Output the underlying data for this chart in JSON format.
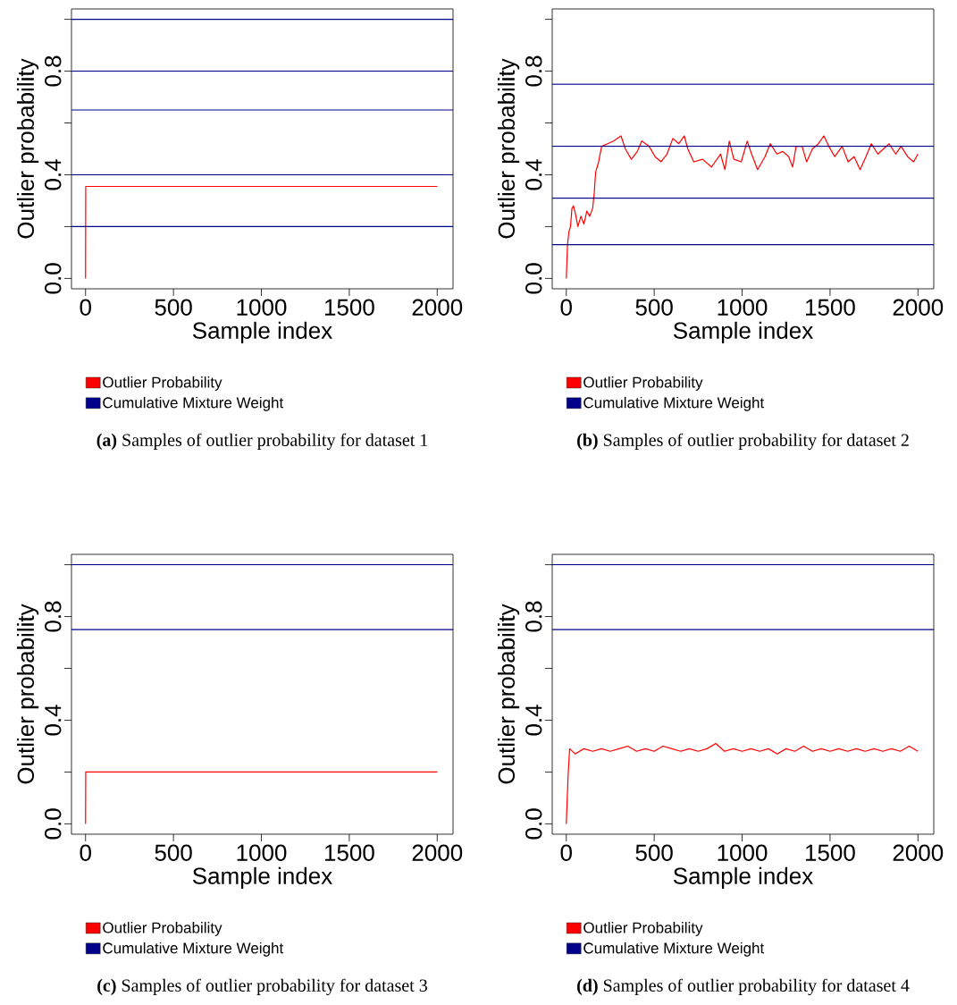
{
  "chart_data": [
    {
      "type": "line",
      "title": "**(a)** Samples of outlier probability for dataset 1",
      "xlabel": "Sample index",
      "ylabel": "Outlier probability",
      "xlim": [
        -80,
        2090
      ],
      "ylim": [
        -0.04,
        1.04
      ],
      "xticks": [
        0,
        500,
        1000,
        1500,
        2000
      ],
      "yticks": [
        {
          "value": 0,
          "label": "0.0"
        },
        {
          "value": 0.2,
          "label": null
        },
        {
          "value": 0.4,
          "label": "0.4"
        },
        {
          "value": 0.6,
          "label": null
        },
        {
          "value": 0.8,
          "label": "0.8"
        },
        {
          "value": 1.0,
          "label": null
        }
      ],
      "legend": "bottom",
      "marker": "none",
      "line_style": "solid",
      "series": [
        {
          "name": "Outlier Probability",
          "color": "#ff0000",
          "x": [
            0,
            1,
            2000
          ],
          "values": [
            0,
            0.355,
            0.355
          ]
        },
        {
          "name": "Cumulative Mixture Weight",
          "color": "#00008b",
          "x": [
            -80,
            2090
          ],
          "values": [
            1.0,
            1.0
          ]
        },
        {
          "color": "#00008b",
          "x": [
            -80,
            2090
          ],
          "values": [
            0.8,
            0.8
          ]
        },
        {
          "color": "#00008b",
          "x": [
            -80,
            2090
          ],
          "values": [
            0.65,
            0.65
          ]
        },
        {
          "color": "#00008b",
          "x": [
            -80,
            2090
          ],
          "values": [
            0.4,
            0.4
          ]
        },
        {
          "color": "#00008b",
          "x": [
            -80,
            2090
          ],
          "values": [
            0.2,
            0.2
          ]
        }
      ]
    },
    {
      "type": "line",
      "title": "**(b)** Samples of outlier probability for dataset 2",
      "xlabel": "Sample index",
      "ylabel": "Outlier probability",
      "xlim": [
        -80,
        2090
      ],
      "ylim": [
        -0.04,
        1.04
      ],
      "xticks": [
        0,
        500,
        1000,
        1500,
        2000
      ],
      "yticks": [
        {
          "value": 0,
          "label": "0.0"
        },
        {
          "value": 0.2,
          "label": null
        },
        {
          "value": 0.4,
          "label": "0.4"
        },
        {
          "value": 0.6,
          "label": null
        },
        {
          "value": 0.8,
          "label": "0.8"
        },
        {
          "value": 1.0,
          "label": null
        }
      ],
      "legend": "bottom",
      "marker": "none",
      "line_style": "solid",
      "series": [
        {
          "name": "Outlier Probability",
          "color": "#ff0000",
          "x": [
            0,
            7,
            15,
            24,
            32,
            41,
            52,
            66,
            83,
            100,
            117,
            133,
            150,
            159,
            167,
            184,
            201,
            235,
            269,
            311,
            336,
            370,
            404,
            429,
            471,
            505,
            539,
            573,
            606,
            640,
            671,
            691,
            725,
            775,
            826,
            877,
            902,
            927,
            953,
            995,
            1029,
            1054,
            1088,
            1130,
            1160,
            1198,
            1231,
            1265,
            1287,
            1307,
            1341,
            1367,
            1400,
            1434,
            1465,
            1493,
            1527,
            1569,
            1603,
            1637,
            1671,
            1704,
            1735,
            1772,
            1836,
            1873,
            1904,
            1941,
            1975,
            2000
          ],
          "values": [
            0,
            0.13,
            0.18,
            0.2,
            0.27,
            0.28,
            0.25,
            0.2,
            0.24,
            0.21,
            0.26,
            0.24,
            0.27,
            0.33,
            0.41,
            0.45,
            0.51,
            0.52,
            0.53,
            0.55,
            0.5,
            0.46,
            0.49,
            0.53,
            0.51,
            0.47,
            0.45,
            0.48,
            0.54,
            0.52,
            0.55,
            0.5,
            0.45,
            0.46,
            0.43,
            0.48,
            0.42,
            0.53,
            0.46,
            0.45,
            0.53,
            0.48,
            0.42,
            0.47,
            0.52,
            0.48,
            0.49,
            0.47,
            0.43,
            0.51,
            0.51,
            0.45,
            0.5,
            0.52,
            0.55,
            0.51,
            0.47,
            0.51,
            0.45,
            0.47,
            0.42,
            0.47,
            0.52,
            0.48,
            0.52,
            0.48,
            0.51,
            0.47,
            0.45,
            0.48
          ]
        },
        {
          "name": "Cumulative Mixture Weight",
          "color": "#00008b",
          "x": [
            -80,
            2090
          ],
          "values": [
            0.75,
            0.75
          ]
        },
        {
          "color": "#00008b",
          "x": [
            -80,
            2090
          ],
          "values": [
            0.51,
            0.51
          ]
        },
        {
          "color": "#00008b",
          "x": [
            -80,
            2090
          ],
          "values": [
            0.31,
            0.31
          ]
        },
        {
          "color": "#00008b",
          "x": [
            -80,
            2090
          ],
          "values": [
            0.13,
            0.13
          ]
        }
      ]
    },
    {
      "type": "line",
      "title": "**(c)** Samples of outlier probability for dataset 3",
      "xlabel": "Sample index",
      "ylabel": "Outlier probability",
      "xlim": [
        -80,
        2090
      ],
      "ylim": [
        -0.04,
        1.04
      ],
      "xticks": [
        0,
        500,
        1000,
        1500,
        2000
      ],
      "yticks": [
        {
          "value": 0,
          "label": "0.0"
        },
        {
          "value": 0.2,
          "label": null
        },
        {
          "value": 0.4,
          "label": "0.4"
        },
        {
          "value": 0.6,
          "label": null
        },
        {
          "value": 0.8,
          "label": "0.8"
        },
        {
          "value": 1.0,
          "label": null
        }
      ],
      "legend": "bottom",
      "marker": "none",
      "line_style": "solid",
      "series": [
        {
          "name": "Outlier Probability",
          "color": "#ff0000",
          "x": [
            0,
            1,
            2000
          ],
          "values": [
            0,
            0.2,
            0.2
          ]
        },
        {
          "name": "Cumulative Mixture Weight",
          "color": "#00008b",
          "x": [
            -80,
            2090
          ],
          "values": [
            1.0,
            1.0
          ]
        },
        {
          "color": "#00008b",
          "x": [
            -80,
            2090
          ],
          "values": [
            0.75,
            0.75
          ]
        }
      ]
    },
    {
      "type": "line",
      "title": "**(d)** Samples of outlier probability for dataset 4",
      "xlabel": "Sample index",
      "ylabel": "Outlier probability",
      "xlim": [
        -80,
        2090
      ],
      "ylim": [
        -0.04,
        1.04
      ],
      "xticks": [
        0,
        500,
        1000,
        1500,
        2000
      ],
      "yticks": [
        {
          "value": 0,
          "label": "0.0"
        },
        {
          "value": 0.2,
          "label": null
        },
        {
          "value": 0.4,
          "label": "0.4"
        },
        {
          "value": 0.6,
          "label": null
        },
        {
          "value": 0.8,
          "label": "0.8"
        },
        {
          "value": 1.0,
          "label": null
        }
      ],
      "legend": "bottom",
      "marker": "none",
      "line_style": "solid",
      "series": [
        {
          "name": "Outlier Probability",
          "color": "#ff0000",
          "x": [
            0,
            10,
            19,
            50,
            100,
            150,
            200,
            250,
            300,
            350,
            400,
            450,
            500,
            550,
            600,
            650,
            700,
            750,
            800,
            850,
            900,
            950,
            1000,
            1050,
            1100,
            1150,
            1200,
            1250,
            1300,
            1350,
            1400,
            1450,
            1500,
            1550,
            1600,
            1650,
            1700,
            1750,
            1800,
            1850,
            1900,
            1950,
            2000
          ],
          "values": [
            0,
            0.18,
            0.29,
            0.27,
            0.29,
            0.28,
            0.29,
            0.28,
            0.29,
            0.3,
            0.28,
            0.29,
            0.28,
            0.3,
            0.29,
            0.28,
            0.29,
            0.28,
            0.29,
            0.31,
            0.28,
            0.29,
            0.28,
            0.29,
            0.28,
            0.29,
            0.27,
            0.29,
            0.28,
            0.3,
            0.28,
            0.29,
            0.28,
            0.29,
            0.28,
            0.29,
            0.28,
            0.29,
            0.28,
            0.29,
            0.28,
            0.3,
            0.28
          ]
        },
        {
          "name": "Cumulative Mixture Weight",
          "color": "#00008b",
          "x": [
            -80,
            2090
          ],
          "values": [
            1.0,
            1.0
          ]
        },
        {
          "color": "#00008b",
          "x": [
            -80,
            2090
          ],
          "values": [
            0.75,
            0.75
          ]
        }
      ]
    }
  ]
}
